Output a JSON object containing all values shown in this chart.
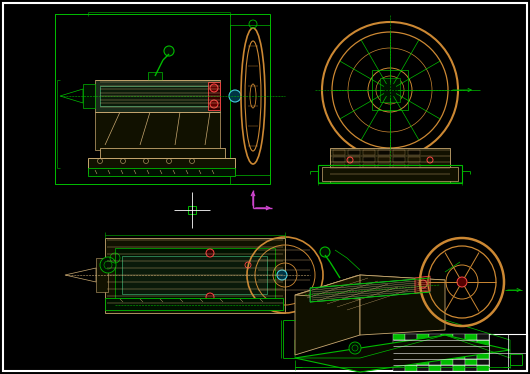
{
  "bg_color": "#000000",
  "green": "#00bb00",
  "bright_green": "#00ff44",
  "orange": "#cc8833",
  "tan": "#c8a870",
  "light_green": "#44cc88",
  "red": "#dd2222",
  "bright_red": "#ff4444",
  "cyan": "#44ccdd",
  "magenta": "#cc44cc",
  "white": "#ffffff",
  "gray": "#888888",
  "fig_width": 5.3,
  "fig_height": 3.74,
  "dpi": 100
}
